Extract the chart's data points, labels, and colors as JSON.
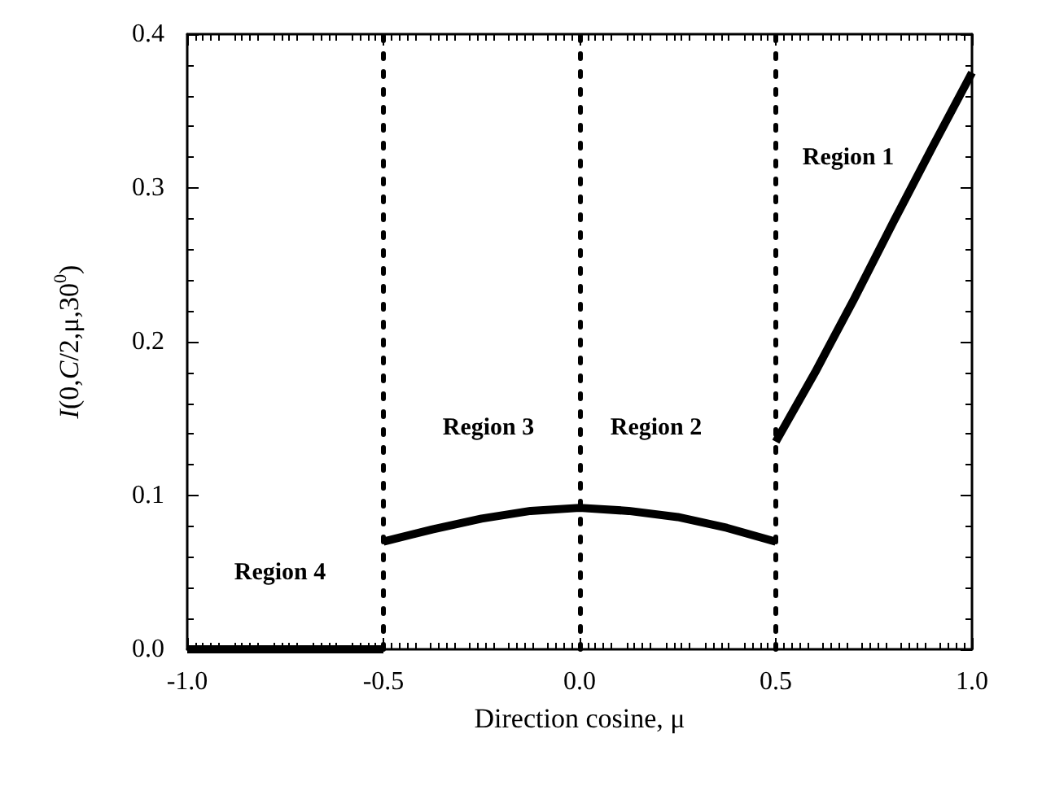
{
  "chart_data": {
    "type": "line",
    "xlabel": "Direction cosine, μ",
    "ylabel": "I(0,C/2,μ,30$^{0}$)",
    "xlim": [
      -1,
      1
    ],
    "xticks": [
      {
        "value": -1,
        "label": "-1.0"
      },
      {
        "value": -0.5,
        "label": "-0.5"
      },
      {
        "value": 0,
        "label": "0.0"
      },
      {
        "value": 0.5,
        "label": "0.5"
      },
      {
        "value": 1,
        "label": "1.0"
      }
    ],
    "ylim": [
      0,
      0.4
    ],
    "yticks": [
      {
        "value": 0,
        "label": "0.0"
      },
      0.1,
      0.2,
      0.3,
      0.4
    ],
    "marker": "none",
    "line_style": "solid",
    "series": [
      {
        "color": "#000000",
        "x": [
          -1,
          -0.5
        ],
        "values": [
          0,
          0
        ]
      },
      {
        "color": "#000000",
        "x": [
          -0.5,
          -0.375,
          -0.25,
          -0.125,
          0,
          0.125,
          0.25,
          0.375,
          0.5
        ],
        "values": [
          0.07,
          0.078,
          0.085,
          0.09,
          0.092,
          0.09,
          0.086,
          0.079,
          0.07
        ]
      },
      {
        "color": "#000000",
        "x": [
          0.5,
          0.6,
          0.7,
          0.8,
          0.9,
          1.0
        ],
        "values": [
          0.135,
          0.18,
          0.228,
          0.278,
          0.327,
          0.375
        ]
      }
    ],
    "ref_lines": [
      {
        "axis": "x",
        "value": -0.5,
        "color": "#000000",
        "line_style": "dotted"
      },
      {
        "axis": "x",
        "value": 0,
        "color": "#000000",
        "line_style": "dotted"
      },
      {
        "axis": "x",
        "value": 0.5,
        "color": "#000000",
        "line_style": "dotted"
      }
    ],
    "annotations": [
      "Region 1",
      "Region 2",
      "Region 3",
      "Region 4"
    ]
  }
}
